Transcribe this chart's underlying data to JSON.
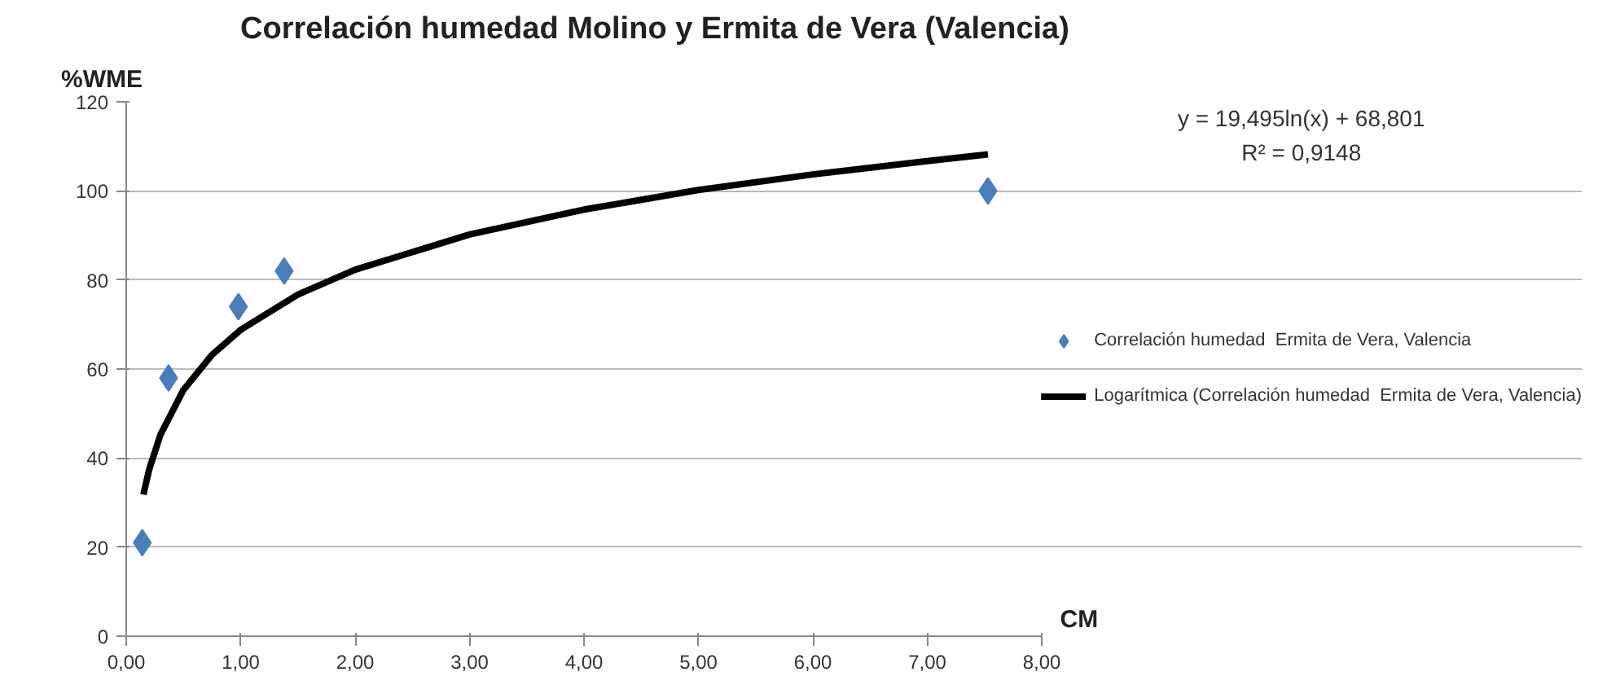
{
  "chart_data": {
    "type": "scatter",
    "title": "Correlación humedad Molino y Ermita de Vera (Valencia)",
    "xlabel": "CM",
    "ylabel": "%WME",
    "xlim": [
      0,
      8
    ],
    "ylim": [
      0,
      120
    ],
    "xticks": [
      {
        "value": 0,
        "label": "0,00"
      },
      {
        "value": 1,
        "label": "1,00"
      },
      {
        "value": 2,
        "label": "2,00"
      },
      {
        "value": 3,
        "label": "3,00"
      },
      {
        "value": 4,
        "label": "4,00"
      },
      {
        "value": 5,
        "label": "5,00"
      },
      {
        "value": 6,
        "label": "6,00"
      },
      {
        "value": 7,
        "label": "7,00"
      },
      {
        "value": 8,
        "label": "8,00"
      }
    ],
    "yticks": [
      0,
      20,
      40,
      60,
      80,
      100,
      120
    ],
    "grid": "y",
    "legend": "right",
    "series": [
      {
        "name": "Correlación humedad  Ermita de Vera, Valencia",
        "marker": "diamond",
        "color": "#4a7ebb",
        "x": [
          0.14,
          0.37,
          0.98,
          1.38,
          7.53
        ],
        "values": [
          21,
          58,
          74,
          82,
          100
        ]
      },
      {
        "name": "Logarítmica (Correlación humedad  Ermita de Vera, Valencia)",
        "type": "line",
        "marker": "none",
        "line_style": "solid",
        "color": "#000000",
        "x": [
          0.15,
          0.2,
          0.3,
          0.5,
          0.75,
          1,
          1.5,
          2,
          3,
          4,
          5,
          6,
          7,
          7.53
        ],
        "values": [
          31.8,
          37.4,
          45.3,
          55.3,
          63.2,
          68.8,
          76.7,
          82.3,
          90.2,
          95.8,
          100.2,
          103.7,
          106.7,
          108.2
        ]
      }
    ],
    "annotations": [
      "y = 19,495ln(x) + 68,801",
      "R² = 0,9148"
    ]
  }
}
